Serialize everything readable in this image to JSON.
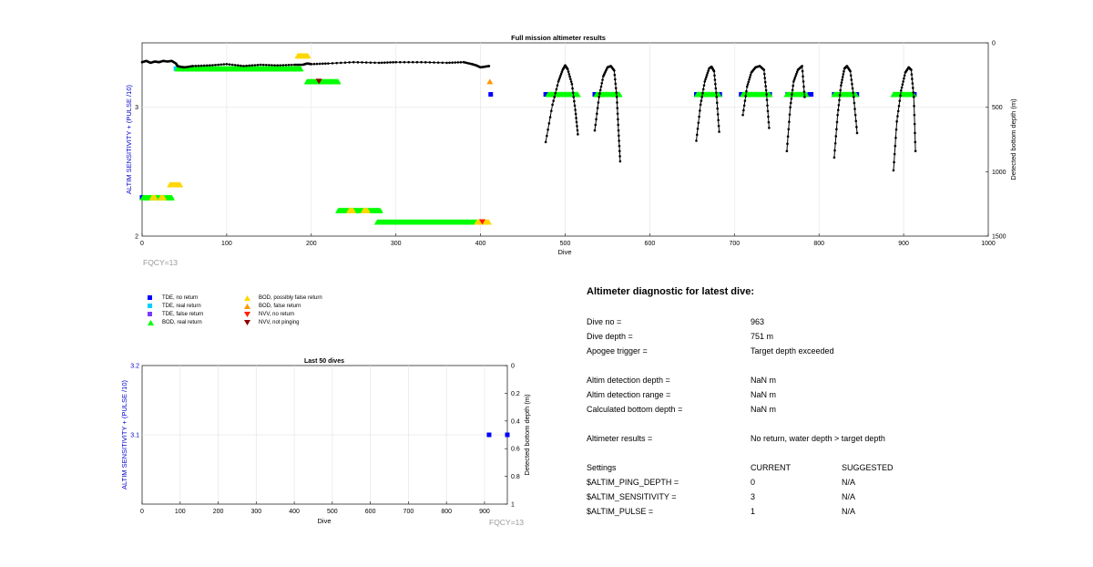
{
  "chart_data": [
    {
      "type": "scatter",
      "title": "Full mission altimeter results",
      "xlabel": "Dive",
      "ylabel": "ALTIM SENSITIVITY + (PULSE /10)",
      "y2label": "Detected bottom depth (m)",
      "xlim": [
        0,
        1000
      ],
      "ylim": [
        2,
        3.5
      ],
      "y2lim": [
        1500,
        0
      ],
      "y2_reversed": true,
      "xticks": [
        "0",
        "100",
        "200",
        "300",
        "400",
        "500",
        "600",
        "700",
        "800",
        "900",
        "1000"
      ],
      "yticks": [
        "2",
        "3"
      ],
      "y2ticks": [
        "0",
        "500",
        "1000",
        "1500"
      ],
      "grid": true,
      "annotation": "FQCY=13",
      "marker_series": [
        {
          "name": "TDE, no return",
          "color": "#0000ff",
          "marker": "square",
          "y": 2.3,
          "x_ranges": [
            [
              0,
              0
            ]
          ]
        },
        {
          "name": "TDE, no return",
          "color": "#0000ff",
          "marker": "square",
          "y": 3.1,
          "x_ranges": [
            [
              412,
              412
            ],
            [
              477,
              478
            ],
            [
              535,
              536
            ],
            [
              655,
              656
            ],
            [
              681,
              683
            ],
            [
              708,
              709
            ],
            [
              740,
              742
            ],
            [
              763,
              764
            ],
            [
              789,
              791
            ],
            [
              818,
              819
            ],
            [
              843,
              845
            ],
            [
              890,
              891
            ],
            [
              911,
              913
            ]
          ]
        },
        {
          "name": "TDE, real return",
          "color": "#00cfff",
          "marker": "square",
          "y": 3.3,
          "x_ranges": [
            [
              40,
              42
            ]
          ]
        },
        {
          "name": "BOD, real return",
          "color": "#00ff00",
          "marker": "triangle-up",
          "y": 3.3,
          "x_ranges": [
            [
              42,
              188
            ]
          ]
        },
        {
          "name": "BOD, real return",
          "color": "#00ff00",
          "marker": "triangle-up",
          "y": 3.2,
          "x_ranges": [
            [
              195,
              232
            ]
          ]
        },
        {
          "name": "BOD, real return",
          "color": "#00ff00",
          "marker": "triangle-up",
          "y": 3.1,
          "x_ranges": [
            [
              480,
              515
            ],
            [
              537,
              565
            ],
            [
              656,
              682
            ],
            [
              710,
              742
            ],
            [
              762,
              785
            ],
            [
              818,
              844
            ],
            [
              888,
              912
            ]
          ]
        },
        {
          "name": "BOD, real return",
          "color": "#00ff00",
          "marker": "triangle-up",
          "y": 2.3,
          "x_ranges": [
            [
              1,
              35
            ]
          ]
        },
        {
          "name": "BOD, real return",
          "color": "#00ff00",
          "marker": "triangle-up",
          "y": 2.2,
          "x_ranges": [
            [
              232,
              282
            ]
          ]
        },
        {
          "name": "BOD, real return",
          "color": "#00ff00",
          "marker": "triangle-up",
          "y": 2.11,
          "x_ranges": [
            [
              278,
              398
            ]
          ]
        },
        {
          "name": "BOD, possibly false return",
          "color": "#ffd700",
          "marker": "triangle-up",
          "y": 3.4,
          "x_ranges": [
            [
              184,
              196
            ]
          ]
        },
        {
          "name": "BOD, possibly false return",
          "color": "#ffd700",
          "marker": "triangle-up",
          "y": 2.4,
          "x_ranges": [
            [
              33,
              45
            ]
          ]
        },
        {
          "name": "BOD, possibly false return",
          "color": "#ffd700",
          "marker": "triangle-up",
          "y": 2.3,
          "x_ranges": [
            [
              12,
              16
            ],
            [
              22,
              26
            ]
          ]
        },
        {
          "name": "BOD, possibly false return",
          "color": "#ffd700",
          "marker": "triangle-up",
          "y": 2.2,
          "x_ranges": [
            [
              245,
              250
            ],
            [
              262,
              267
            ]
          ]
        },
        {
          "name": "BOD, possibly false return",
          "color": "#ffd700",
          "marker": "triangle-up",
          "y": 2.11,
          "x_ranges": [
            [
              396,
              410
            ]
          ]
        },
        {
          "name": "BOD, false return",
          "color": "#ff9900",
          "marker": "triangle-up",
          "y": 3.2,
          "x_ranges": [
            [
              411,
              411
            ]
          ]
        },
        {
          "name": "NVV, no return",
          "color": "#ff2000",
          "marker": "triangle-down",
          "y": 2.11,
          "x_ranges": [
            [
              402,
              402
            ]
          ]
        },
        {
          "name": "NVV, not pinging",
          "color": "#8b0000",
          "marker": "triangle-down",
          "y": 3.2,
          "x_ranges": [
            [
              209,
              209
            ]
          ]
        }
      ],
      "depth_segments": [
        {
          "x": [
            0,
            5,
            10,
            15,
            20,
            25,
            30,
            35,
            40,
            42,
            45,
            50,
            60,
            80,
            100,
            120,
            140,
            160,
            180,
            190,
            195,
            200,
            220,
            250,
            280,
            300,
            330,
            360,
            380,
            390,
            395,
            400,
            405,
            410
          ],
          "depth": [
            150,
            140,
            155,
            145,
            150,
            140,
            145,
            140,
            160,
            180,
            185,
            190,
            180,
            175,
            165,
            180,
            170,
            175,
            170,
            170,
            160,
            165,
            160,
            150,
            155,
            150,
            150,
            155,
            150,
            165,
            175,
            190,
            185,
            180
          ]
        },
        {
          "x": [
            477,
            485,
            492,
            497,
            500,
            503,
            508,
            512,
            515
          ],
          "depth": [
            770,
            480,
            300,
            210,
            175,
            205,
            320,
            520,
            710
          ]
        },
        {
          "x": [
            535,
            540,
            545,
            550,
            554,
            558,
            561,
            563,
            565
          ],
          "depth": [
            680,
            420,
            260,
            190,
            180,
            215,
            420,
            680,
            920
          ]
        },
        {
          "x": [
            655,
            660,
            665,
            670,
            673,
            676,
            679,
            682
          ],
          "depth": [
            760,
            480,
            300,
            200,
            185,
            220,
            420,
            690
          ]
        },
        {
          "x": [
            710,
            715,
            720,
            725,
            730,
            735,
            738,
            741
          ],
          "depth": [
            560,
            340,
            230,
            190,
            180,
            210,
            400,
            660
          ]
        },
        {
          "x": [
            762,
            766,
            770,
            775,
            780,
            783
          ],
          "depth": [
            840,
            500,
            300,
            210,
            180,
            420
          ]
        },
        {
          "x": [
            818,
            822,
            826,
            830,
            833,
            837,
            841,
            845
          ],
          "depth": [
            890,
            560,
            330,
            200,
            180,
            220,
            420,
            700
          ]
        },
        {
          "x": [
            888,
            892,
            897,
            902,
            906,
            909,
            912,
            914
          ],
          "depth": [
            990,
            610,
            370,
            230,
            190,
            210,
            420,
            840
          ]
        }
      ]
    },
    {
      "type": "scatter",
      "title": "Last 50 dives",
      "xlabel": "Dive",
      "ylabel": "ALTIM SENSITIVITY + (PULSE /10)",
      "y2label": "Detected bottom depth (m)",
      "xlim": [
        0,
        960
      ],
      "ylim": [
        3,
        3.2
      ],
      "y2lim": [
        1,
        0
      ],
      "y2_reversed": true,
      "xticks": [
        "0",
        "100",
        "200",
        "300",
        "400",
        "500",
        "600",
        "700",
        "800",
        "900"
      ],
      "yticks": [
        "3.1",
        "3.2"
      ],
      "y2ticks": [
        "0",
        "0.2",
        "0.4",
        "0.6",
        "0.8",
        "1"
      ],
      "grid": true,
      "annotation": "FQCY=13",
      "points": [
        {
          "x": 912,
          "y": 3.1,
          "series": "TDE, no return",
          "color": "#0000ff"
        },
        {
          "x": 960,
          "y": 3.1,
          "series": "TDE, no return",
          "color": "#0000ff"
        }
      ]
    }
  ],
  "legend": [
    {
      "label": "TDE, no return",
      "color": "#0000ff",
      "marker": "square"
    },
    {
      "label": "TDE, real return",
      "color": "#00cfff",
      "marker": "square"
    },
    {
      "label": "TDE, false return",
      "color": "#7a3cff",
      "marker": "square"
    },
    {
      "label": "BOD, real return",
      "color": "#00ff00",
      "marker": "triangle-up"
    },
    {
      "label": "BOD, possibly false return",
      "color": "#ffd700",
      "marker": "triangle-up"
    },
    {
      "label": "BOD, false return",
      "color": "#ff9900",
      "marker": "triangle-up"
    },
    {
      "label": "NVV, no return",
      "color": "#ff2000",
      "marker": "triangle-down"
    },
    {
      "label": "NVV, not pinging",
      "color": "#8b0000",
      "marker": "triangle-down"
    }
  ],
  "diagnostic": {
    "title": "Altimeter diagnostic for latest dive:",
    "rows": [
      {
        "label": "Dive no =",
        "value": "963"
      },
      {
        "label": "Dive depth =",
        "value": "751 m"
      },
      {
        "label": "Apogee trigger =",
        "value": "Target depth exceeded"
      },
      {
        "label": "Altim detection depth =",
        "value": "NaN m"
      },
      {
        "label": "Altim detection range =",
        "value": "NaN m"
      },
      {
        "label": "Calculated bottom depth =",
        "value": "NaN m"
      },
      {
        "label": "Altimeter results =",
        "value": "No return, water depth > target depth"
      }
    ],
    "settings": {
      "header": {
        "name": "Settings",
        "current": "CURRENT",
        "suggested": "SUGGESTED"
      },
      "items": [
        {
          "name": "$ALTIM_PING_DEPTH =",
          "current": "0",
          "suggested": "N/A"
        },
        {
          "name": "$ALTIM_SENSITIVITY =",
          "current": "3",
          "suggested": "N/A"
        },
        {
          "name": "$ALTIM_PULSE =",
          "current": "1",
          "suggested": "N/A"
        }
      ]
    }
  },
  "colors": {
    "axis_label": "#0000cc",
    "annotation": "#999999",
    "grid": "#e6e6e6",
    "depth_line": "#000000"
  }
}
